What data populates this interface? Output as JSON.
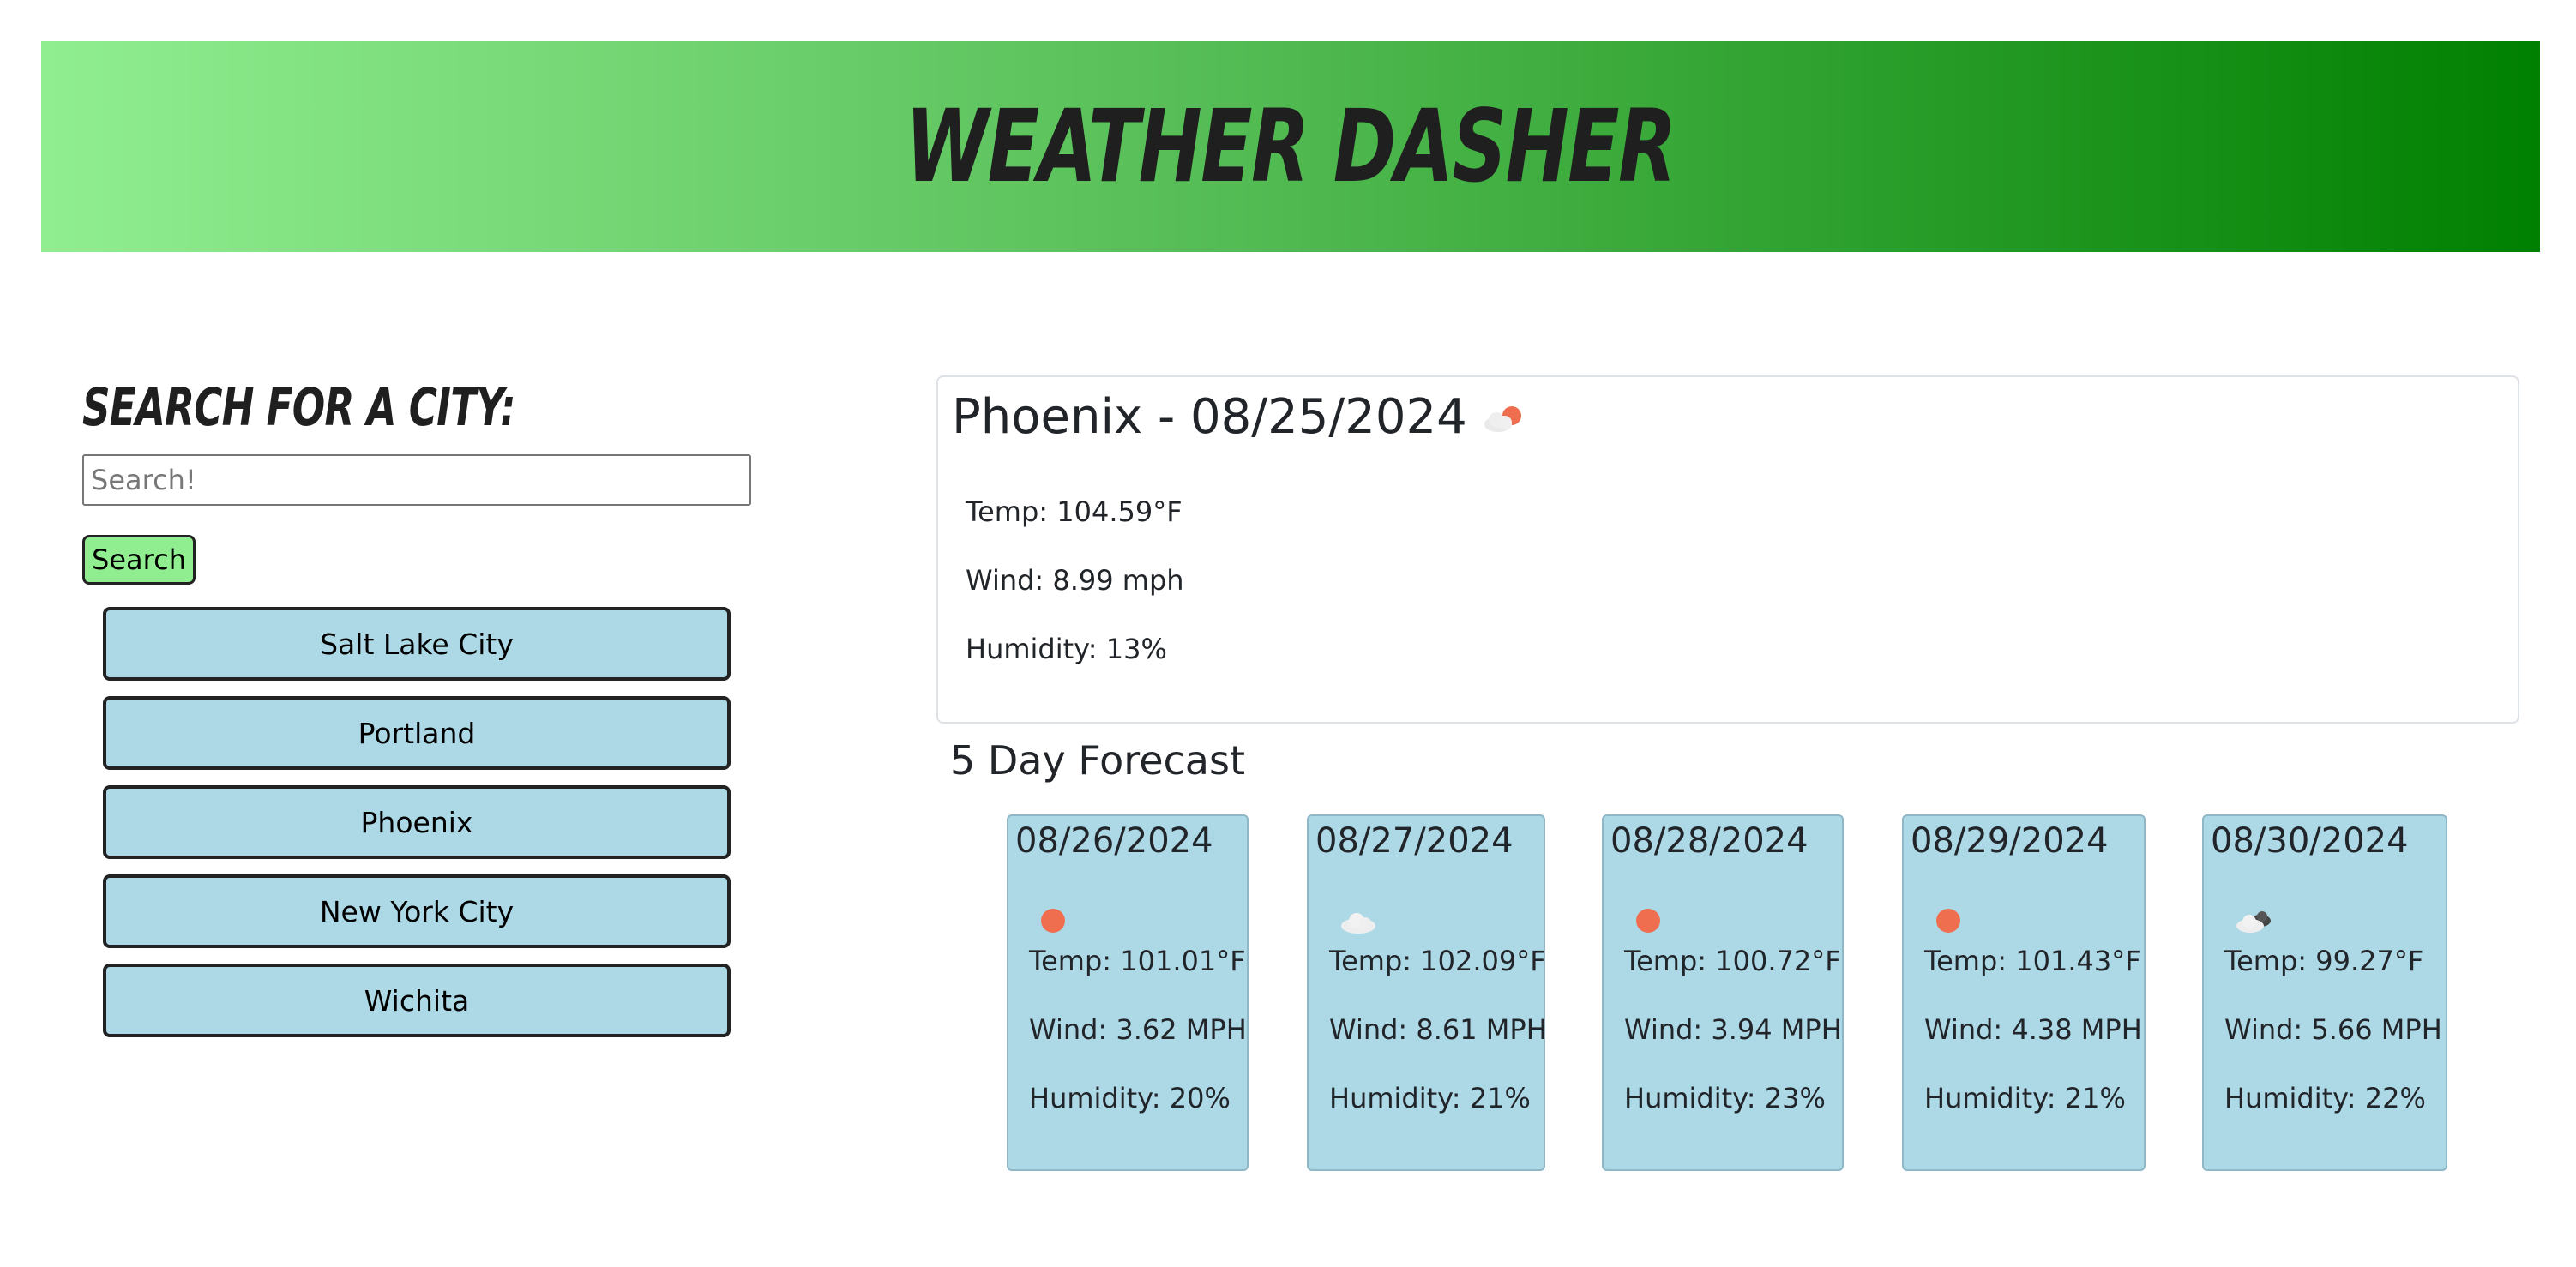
{
  "header": {
    "title": "Weather Dasher"
  },
  "sidebar": {
    "heading": "Search for a City:",
    "search_placeholder": "Search!",
    "search_button": "Search",
    "history": [
      "Salt Lake City",
      "Portland",
      "Phoenix",
      "New York City",
      "Wichita"
    ]
  },
  "current": {
    "title": "Phoenix - 08/25/2024",
    "icon": "few-clouds-sun-icon",
    "temp": "Temp: 104.59°F",
    "wind": "Wind: 8.99 mph",
    "humidity": "Humidity: 13%"
  },
  "forecast": {
    "title": "5 Day Forecast",
    "days": [
      {
        "date": "08/26/2024",
        "icon": "sun-icon",
        "temp": "Temp: 101.01°F",
        "wind": "Wind: 3.62 MPH",
        "humidity": "Humidity: 20%"
      },
      {
        "date": "08/27/2024",
        "icon": "cloud-icon",
        "temp": "Temp: 102.09°F",
        "wind": "Wind: 8.61 MPH",
        "humidity": "Humidity: 21%"
      },
      {
        "date": "08/28/2024",
        "icon": "sun-icon",
        "temp": "Temp: 100.72°F",
        "wind": "Wind: 3.94 MPH",
        "humidity": "Humidity: 23%"
      },
      {
        "date": "08/29/2024",
        "icon": "sun-icon",
        "temp": "Temp: 101.43°F",
        "wind": "Wind: 4.38 MPH",
        "humidity": "Humidity: 21%"
      },
      {
        "date": "08/30/2024",
        "icon": "broken-clouds-icon",
        "temp": "Temp: 99.27°F",
        "wind": "Wind: 5.66 MPH",
        "humidity": "Humidity: 22%"
      }
    ]
  },
  "colors": {
    "header_gradient_start": "#90ee90",
    "header_gradient_end": "#008000",
    "search_button_bg": "#90ee90",
    "history_button_bg": "#add8e6",
    "forecast_card_bg": "#add8e6",
    "sun": "#ee6e4f"
  }
}
